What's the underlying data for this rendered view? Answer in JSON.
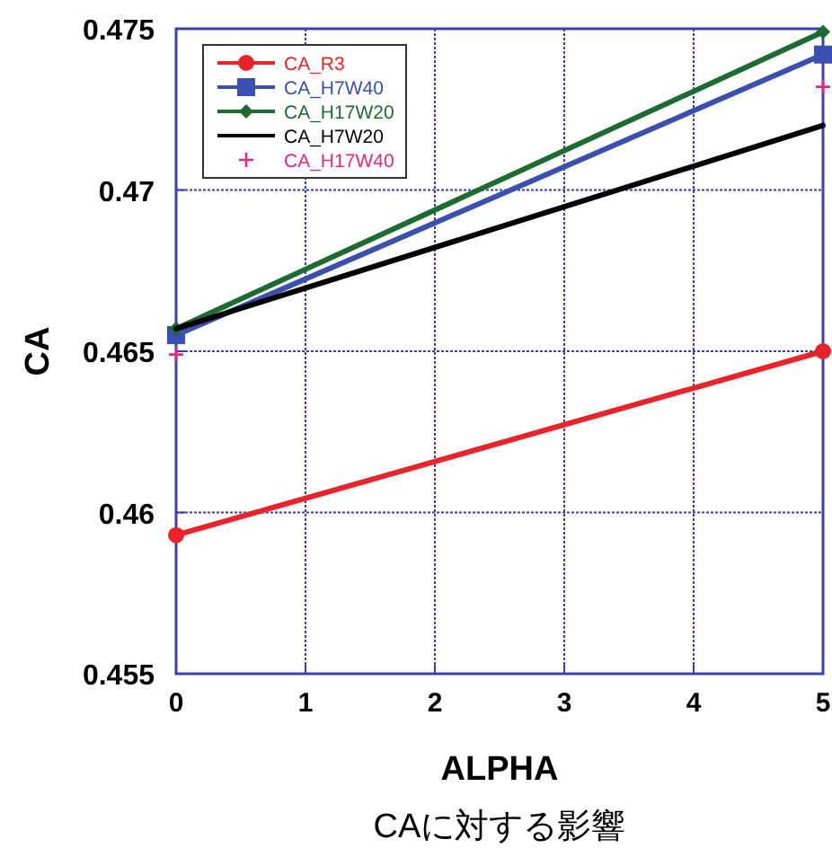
{
  "chart_data": {
    "type": "line",
    "xlabel": "ALPHA",
    "ylabel": "CA",
    "annotations": [
      "CAに対する影響"
    ],
    "x": [
      0,
      5
    ],
    "xlim": [
      0,
      5
    ],
    "xticks": [
      0,
      1,
      2,
      3,
      4,
      5
    ],
    "ylim": [
      0.455,
      0.475
    ],
    "yticks": [
      0.455,
      0.46,
      0.465,
      0.47,
      0.475
    ],
    "grid": true,
    "legend": "top left",
    "line_style": "solid",
    "series": [
      {
        "name": "CA_R3",
        "color": "#e8242a",
        "marker": "circle",
        "values": [
          0.4593,
          0.465
        ]
      },
      {
        "name": "CA_H7W40",
        "color": "#3a4fb0",
        "marker": "square",
        "values": [
          0.4655,
          0.4742
        ]
      },
      {
        "name": "CA_H17W20",
        "color": "#1e6b32",
        "marker": "diamond",
        "values": [
          0.4657,
          0.4749
        ]
      },
      {
        "name": "CA_H7W20",
        "color": "#000000",
        "marker": "none",
        "values": [
          0.4657,
          0.472
        ]
      },
      {
        "name": "CA_H17W40",
        "type": "scatter",
        "color": "#e8287a",
        "marker": "cross",
        "values": [
          0.4649,
          0.4732
        ]
      }
    ]
  }
}
